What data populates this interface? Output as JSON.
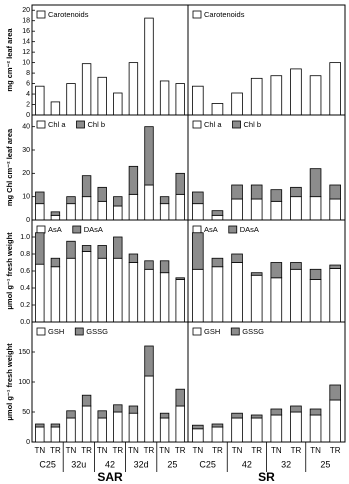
{
  "chart_data": [
    {
      "type": "bar",
      "ylabel": "mg cm⁻² leaf area",
      "ylim": [
        0,
        21
      ],
      "yticks": [
        0,
        2,
        4,
        6,
        8,
        10,
        12,
        14,
        16,
        18,
        20
      ],
      "series": [
        {
          "name": "Carotenoids",
          "color": "#ffffff",
          "values": [
            5.5,
            2.5,
            6,
            9.8,
            7.2,
            4.2,
            10,
            18.5,
            6.5,
            6
          ]
        }
      ]
    },
    {
      "type": "bar",
      "ylim": [
        0,
        21
      ],
      "series": [
        {
          "name": "Carotenoids",
          "color": "#ffffff",
          "values": [
            5.5,
            2.2,
            4.2,
            7,
            7.5,
            8.8,
            7.5,
            10
          ]
        }
      ]
    },
    {
      "type": "bar",
      "ylabel": "mg Chl cm⁻² leaf area",
      "ylim": [
        0,
        45
      ],
      "yticks": [
        0,
        10,
        20,
        30,
        40
      ],
      "series": [
        {
          "name": "Chl a",
          "color": "#ffffff",
          "values": [
            7,
            2,
            7,
            10,
            8,
            6,
            11,
            15,
            7,
            11
          ]
        },
        {
          "name": "Chl b",
          "color": "#8c8c8c",
          "values": [
            5,
            1.5,
            3,
            9,
            6,
            4,
            12,
            25,
            3,
            9
          ]
        }
      ]
    },
    {
      "type": "bar",
      "ylim": [
        0,
        45
      ],
      "series": [
        {
          "name": "Chl a",
          "color": "#ffffff",
          "values": [
            7,
            2,
            9,
            9,
            8,
            10,
            10,
            9
          ]
        },
        {
          "name": "Chl b",
          "color": "#8c8c8c",
          "values": [
            5,
            2,
            6,
            6,
            5,
            4,
            12,
            6
          ]
        }
      ]
    },
    {
      "type": "bar",
      "ylabel": "μmol g⁻¹ fresh weight",
      "ylim": [
        0,
        1.2
      ],
      "yticks": [
        {
          "value": 0,
          "label": "0.0"
        },
        {
          "value": 0.2,
          "label": "0.2"
        },
        {
          "value": 0.4,
          "label": "0.4"
        },
        {
          "value": 0.6,
          "label": "0.6"
        },
        {
          "value": 0.8,
          "label": "0.8"
        },
        {
          "value": 1,
          "label": "1.0"
        }
      ],
      "series": [
        {
          "name": "AsA",
          "color": "#ffffff",
          "values": [
            0.68,
            0.65,
            0.75,
            0.83,
            0.75,
            0.75,
            0.7,
            0.62,
            0.58,
            0.5
          ]
        },
        {
          "name": "DAsA",
          "color": "#8c8c8c",
          "values": [
            0.37,
            0.1,
            0.2,
            0.07,
            0.15,
            0.25,
            0.1,
            0.1,
            0.14,
            0.02
          ]
        }
      ]
    },
    {
      "type": "bar",
      "ylim": [
        0,
        1.2
      ],
      "series": [
        {
          "name": "AsA",
          "color": "#ffffff",
          "values": [
            0.62,
            0.65,
            0.7,
            0.55,
            0.52,
            0.62,
            0.5,
            0.63
          ]
        },
        {
          "name": "DAsA",
          "color": "#8c8c8c",
          "values": [
            0.43,
            0.1,
            0.1,
            0.03,
            0.18,
            0.08,
            0.12,
            0.04
          ]
        }
      ]
    },
    {
      "type": "bar",
      "ylabel": "μmol g⁻¹ fresh weight",
      "ylim": [
        0,
        200
      ],
      "yticks": [
        0,
        50,
        100,
        150
      ],
      "categories": [
        "TN",
        "TR",
        "TN",
        "TR",
        "TN",
        "TR",
        "TN",
        "TR",
        "TN",
        "TR"
      ],
      "groups": [
        "C25",
        "32u",
        "42",
        "32d",
        "25"
      ],
      "column_title": "SAR",
      "series": [
        {
          "name": "GSH",
          "color": "#ffffff",
          "values": [
            25,
            25,
            40,
            60,
            40,
            50,
            48,
            110,
            40,
            60
          ]
        },
        {
          "name": "GSSG",
          "color": "#8c8c8c",
          "values": [
            5,
            5,
            12,
            18,
            12,
            12,
            12,
            50,
            8,
            28
          ]
        }
      ]
    },
    {
      "type": "bar",
      "ylim": [
        0,
        200
      ],
      "categories": [
        "TN",
        "TR",
        "TN",
        "TR",
        "TN",
        "TR",
        "TN",
        "TR"
      ],
      "groups": [
        "C25",
        "42",
        "32",
        "25"
      ],
      "column_title": "SR",
      "series": [
        {
          "name": "GSH",
          "color": "#ffffff",
          "values": [
            22,
            25,
            40,
            40,
            45,
            50,
            45,
            70
          ]
        },
        {
          "name": "GSSG",
          "color": "#8c8c8c",
          "values": [
            6,
            5,
            8,
            5,
            10,
            10,
            10,
            25
          ]
        }
      ]
    }
  ]
}
